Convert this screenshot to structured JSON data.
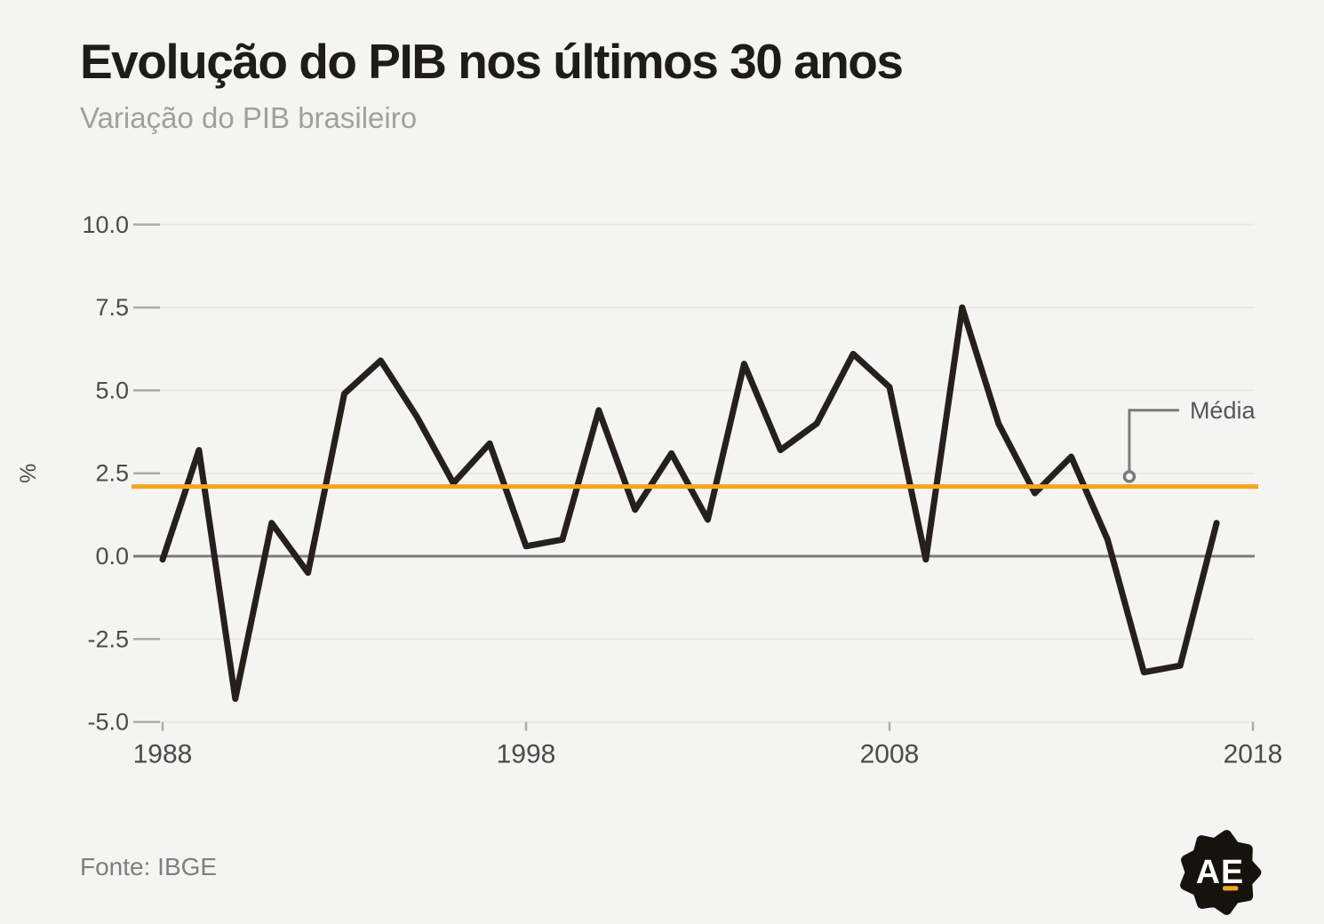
{
  "header": {
    "title": "Evolução do PIB nos últimos 30 anos",
    "subtitle": "Variação do PIB brasileiro"
  },
  "footer": {
    "source": "Fonte: IBGE",
    "logo_text": "AE"
  },
  "chart_data": {
    "type": "line",
    "title": "Evolução do PIB nos últimos 30 anos",
    "subtitle": "Variação do PIB brasileiro",
    "ylabel": "%",
    "xlabel": "",
    "x": [
      1988,
      1989,
      1990,
      1991,
      1992,
      1993,
      1994,
      1995,
      1996,
      1997,
      1998,
      1999,
      2000,
      2001,
      2002,
      2003,
      2004,
      2005,
      2006,
      2007,
      2008,
      2009,
      2010,
      2011,
      2012,
      2013,
      2014,
      2015,
      2016,
      2017
    ],
    "series": [
      {
        "name": "Variação do PIB brasileiro (%)",
        "values": [
          -0.1,
          3.2,
          -4.3,
          1.0,
          -0.5,
          4.9,
          5.9,
          4.2,
          2.2,
          3.4,
          0.3,
          0.5,
          4.4,
          1.4,
          3.1,
          1.1,
          5.8,
          3.2,
          4.0,
          6.1,
          5.1,
          -0.1,
          7.5,
          4.0,
          1.9,
          3.0,
          0.5,
          -3.5,
          -3.3,
          1.0
        ]
      }
    ],
    "average_line": {
      "label": "Média",
      "value": 2.1
    },
    "annotation": {
      "label": "Média",
      "marker_year": 2014.6,
      "marker_value": 2.4,
      "elbow_value": 4.4
    },
    "xlim": [
      1988,
      2018
    ],
    "ylim": [
      -5.0,
      10.0
    ],
    "xticks": [
      1988,
      1998,
      2008,
      2018
    ],
    "yticks": [
      10.0,
      7.5,
      5.0,
      2.5,
      0.0,
      -2.5,
      -5.0
    ],
    "grid": true,
    "zero_line": true,
    "legend_position": "none",
    "colors": {
      "line": "#26201c",
      "average": "#f6a41c",
      "grid": "#e8e8e6",
      "zero_line": "#7c7c7c",
      "tick_dash": "#ababab",
      "axis_text": "#4b4b4b",
      "annotation_line": "#7b7b7b",
      "annotation_text": "#56565a",
      "background": "#f4f4f2"
    }
  }
}
